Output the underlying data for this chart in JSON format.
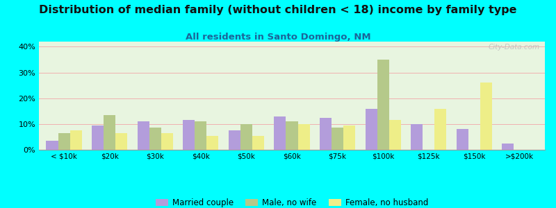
{
  "title": "Distribution of median family (without children < 18) income by family type",
  "subtitle": "All residents in Santo Domingo, NM",
  "categories": [
    "< $10k",
    "$20k",
    "$30k",
    "$40k",
    "$50k",
    "$60k",
    "$75k",
    "$100k",
    "$125k",
    "$150k",
    ">$200k"
  ],
  "married_couple": [
    3.5,
    9.5,
    11.0,
    11.5,
    7.5,
    13.0,
    12.5,
    16.0,
    10.0,
    8.0,
    2.5
  ],
  "male_no_wife": [
    6.5,
    13.5,
    8.5,
    11.0,
    10.0,
    11.0,
    8.5,
    35.0,
    0.0,
    0.0,
    0.0
  ],
  "female_no_husb": [
    7.5,
    6.5,
    6.5,
    5.5,
    5.5,
    10.0,
    9.5,
    11.5,
    16.0,
    26.0,
    0.0
  ],
  "color_married": "#b39ddb",
  "color_male": "#b5c98a",
  "color_female": "#eeee88",
  "bg_color": "#00ffff",
  "plot_bg": "#e8f5e0",
  "ylim": [
    0,
    42
  ],
  "yticks": [
    0,
    10,
    20,
    30,
    40
  ],
  "ytick_labels": [
    "0%",
    "10%",
    "20%",
    "30%",
    "40%"
  ],
  "title_fontsize": 11.5,
  "subtitle_fontsize": 9.5,
  "watermark": "City-Data.com"
}
